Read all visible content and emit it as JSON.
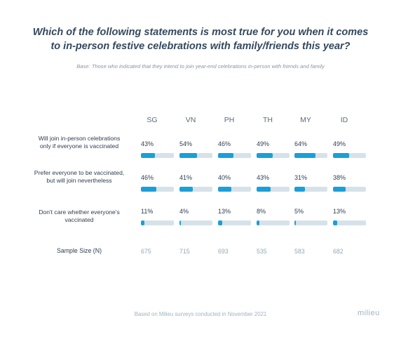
{
  "title": "Which of the following statements is most true for you when it comes to in-person festive celebrations with family/friends this year?",
  "subtitle": "Base: Those who indicated that they intend to join year-end celebrations in-person with friends and family",
  "footer": "Based on Milieu surveys conducted in November 2021",
  "logo": "milieu",
  "sample_label": "Sample Size (N)",
  "colors": {
    "bar_fill": "#1a9fd9",
    "bar_track": "#d6e2e9",
    "title": "#34495e"
  },
  "chart_data": {
    "type": "bar",
    "categories": [
      "SG",
      "VN",
      "PH",
      "TH",
      "MY",
      "ID"
    ],
    "ylim": [
      0,
      100
    ],
    "series": [
      {
        "name": "Will join in-person celebrations only if everyone is vaccinated",
        "values": [
          43,
          54,
          46,
          49,
          64,
          49
        ],
        "labels": [
          "43%",
          "54%",
          "46%",
          "49%",
          "64%",
          "49%"
        ]
      },
      {
        "name": "Prefer everyone to be vaccinated, but will join nevertheless",
        "values": [
          46,
          41,
          40,
          43,
          31,
          38
        ],
        "labels": [
          "46%",
          "41%",
          "40%",
          "43%",
          "31%",
          "38%"
        ]
      },
      {
        "name": "Don't care whether everyone's vaccinated",
        "values": [
          11,
          4,
          13,
          8,
          5,
          13
        ],
        "labels": [
          "11%",
          "4%",
          "13%",
          "8%",
          "5%",
          "13%"
        ]
      }
    ],
    "sample_sizes": [
      "675",
      "715",
      "693",
      "535",
      "583",
      "682"
    ]
  }
}
